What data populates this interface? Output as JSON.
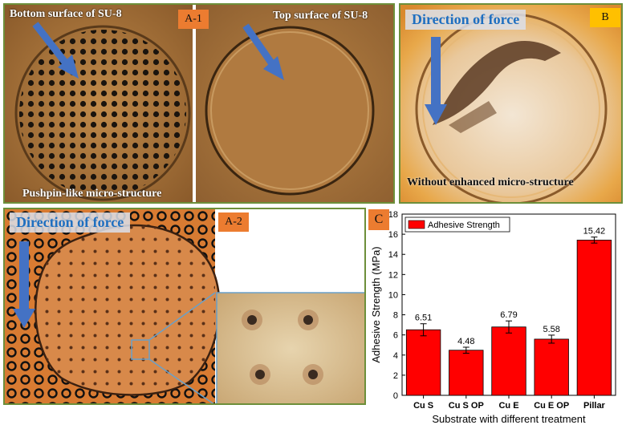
{
  "panel_a1": {
    "tag": "A-1",
    "left_caption_top": "Bottom surface of SU-8",
    "left_caption_bottom": "Pushpin-like micro-structure",
    "right_caption_top": "Top surface of SU-8"
  },
  "panel_b": {
    "tag": "B",
    "force_label": "Direction of force",
    "caption_bottom": "Without enhanced micro-structure"
  },
  "panel_a2": {
    "tag": "A-2",
    "force_label": "Direction of force"
  },
  "panel_c": {
    "tag": "C"
  },
  "colors": {
    "tag": "#ec7c30",
    "bar": "#ff0000",
    "arrow": "#4472c4",
    "force_text": "#1f6fc0"
  },
  "chart_data": {
    "type": "bar",
    "categories": [
      "Cu S",
      "Cu S OP",
      "Cu E",
      "Cu E OP",
      "Pillar"
    ],
    "series": [
      {
        "name": "Adhesive Strength",
        "values": [
          6.51,
          4.48,
          6.79,
          5.58,
          15.42
        ]
      }
    ],
    "data_labels": [
      "6.51",
      "4.48",
      "6.79",
      "5.58",
      "15.42"
    ],
    "error": [
      0.6,
      0.3,
      0.6,
      0.4,
      0.3
    ],
    "xlabel": "Substrate with different treatment",
    "ylabel": "Adhesive Strength (MPa)",
    "ylim": [
      0,
      18
    ],
    "yticks": [
      0,
      2,
      4,
      6,
      8,
      10,
      12,
      14,
      16,
      18
    ],
    "legend": "top-left",
    "grid": false
  }
}
